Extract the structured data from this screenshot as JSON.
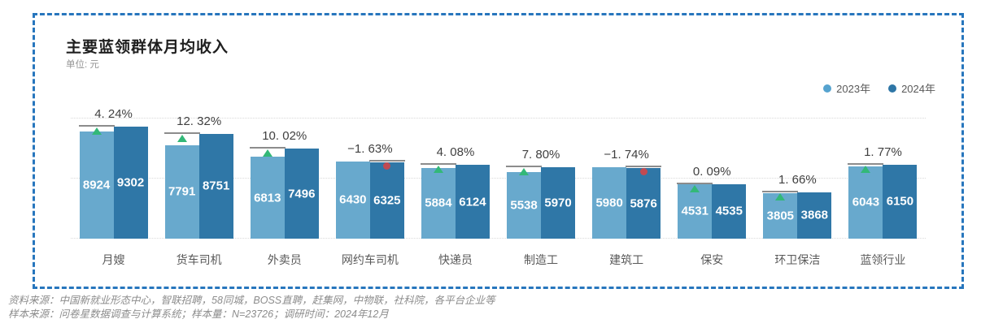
{
  "panel": {
    "title": "主要蓝领群体月均收入",
    "subtitle": "单位: 元"
  },
  "legend": [
    {
      "label": "2023年",
      "color": "#56a3cf"
    },
    {
      "label": "2024年",
      "color": "#2e76a6"
    }
  ],
  "chart_data": {
    "type": "bar",
    "title": "主要蓝领群体月均收入",
    "unit": "元",
    "categories": [
      "月嫂",
      "货车司机",
      "外卖员",
      "网约车司机",
      "快递员",
      "制造工",
      "建筑工",
      "保安",
      "环卫保洁",
      "蓝领行业"
    ],
    "series": [
      {
        "name": "2023年",
        "color": "#68a9cd",
        "values": [
          8924,
          7791,
          6813,
          6430,
          5884,
          5538,
          5980,
          4531,
          3805,
          6043
        ]
      },
      {
        "name": "2024年",
        "color": "#2f77a7",
        "values": [
          9302,
          8751,
          7496,
          6325,
          6124,
          5970,
          5876,
          4535,
          3868,
          6150
        ]
      }
    ],
    "change_pct": [
      4.24,
      12.32,
      10.02,
      -1.63,
      4.08,
      7.8,
      -1.74,
      0.09,
      1.66,
      1.77
    ],
    "change_labels": [
      "4. 24%",
      "12. 32%",
      "10. 02%",
      "−1. 63%",
      "4. 08%",
      "7. 80%",
      "−1. 74%",
      "0. 09%",
      "1. 66%",
      "1. 77%"
    ],
    "ylim": [
      0,
      10000
    ],
    "gridline_values": [
      5000,
      10000
    ],
    "grid": "dotted",
    "legend_position": "top-right",
    "marker_colors": {
      "up": "#33b878",
      "down": "#c14a52"
    }
  },
  "footer": {
    "line1": "资料来源：中国新就业形态中心，智联招聘，58同城，BOSS直聘，赶集网，中物联，社科院，各平台企业等",
    "line2": "样本来源：问卷星数据调查与计算系统；样本量：N=23726；调研时间：2024年12月"
  }
}
